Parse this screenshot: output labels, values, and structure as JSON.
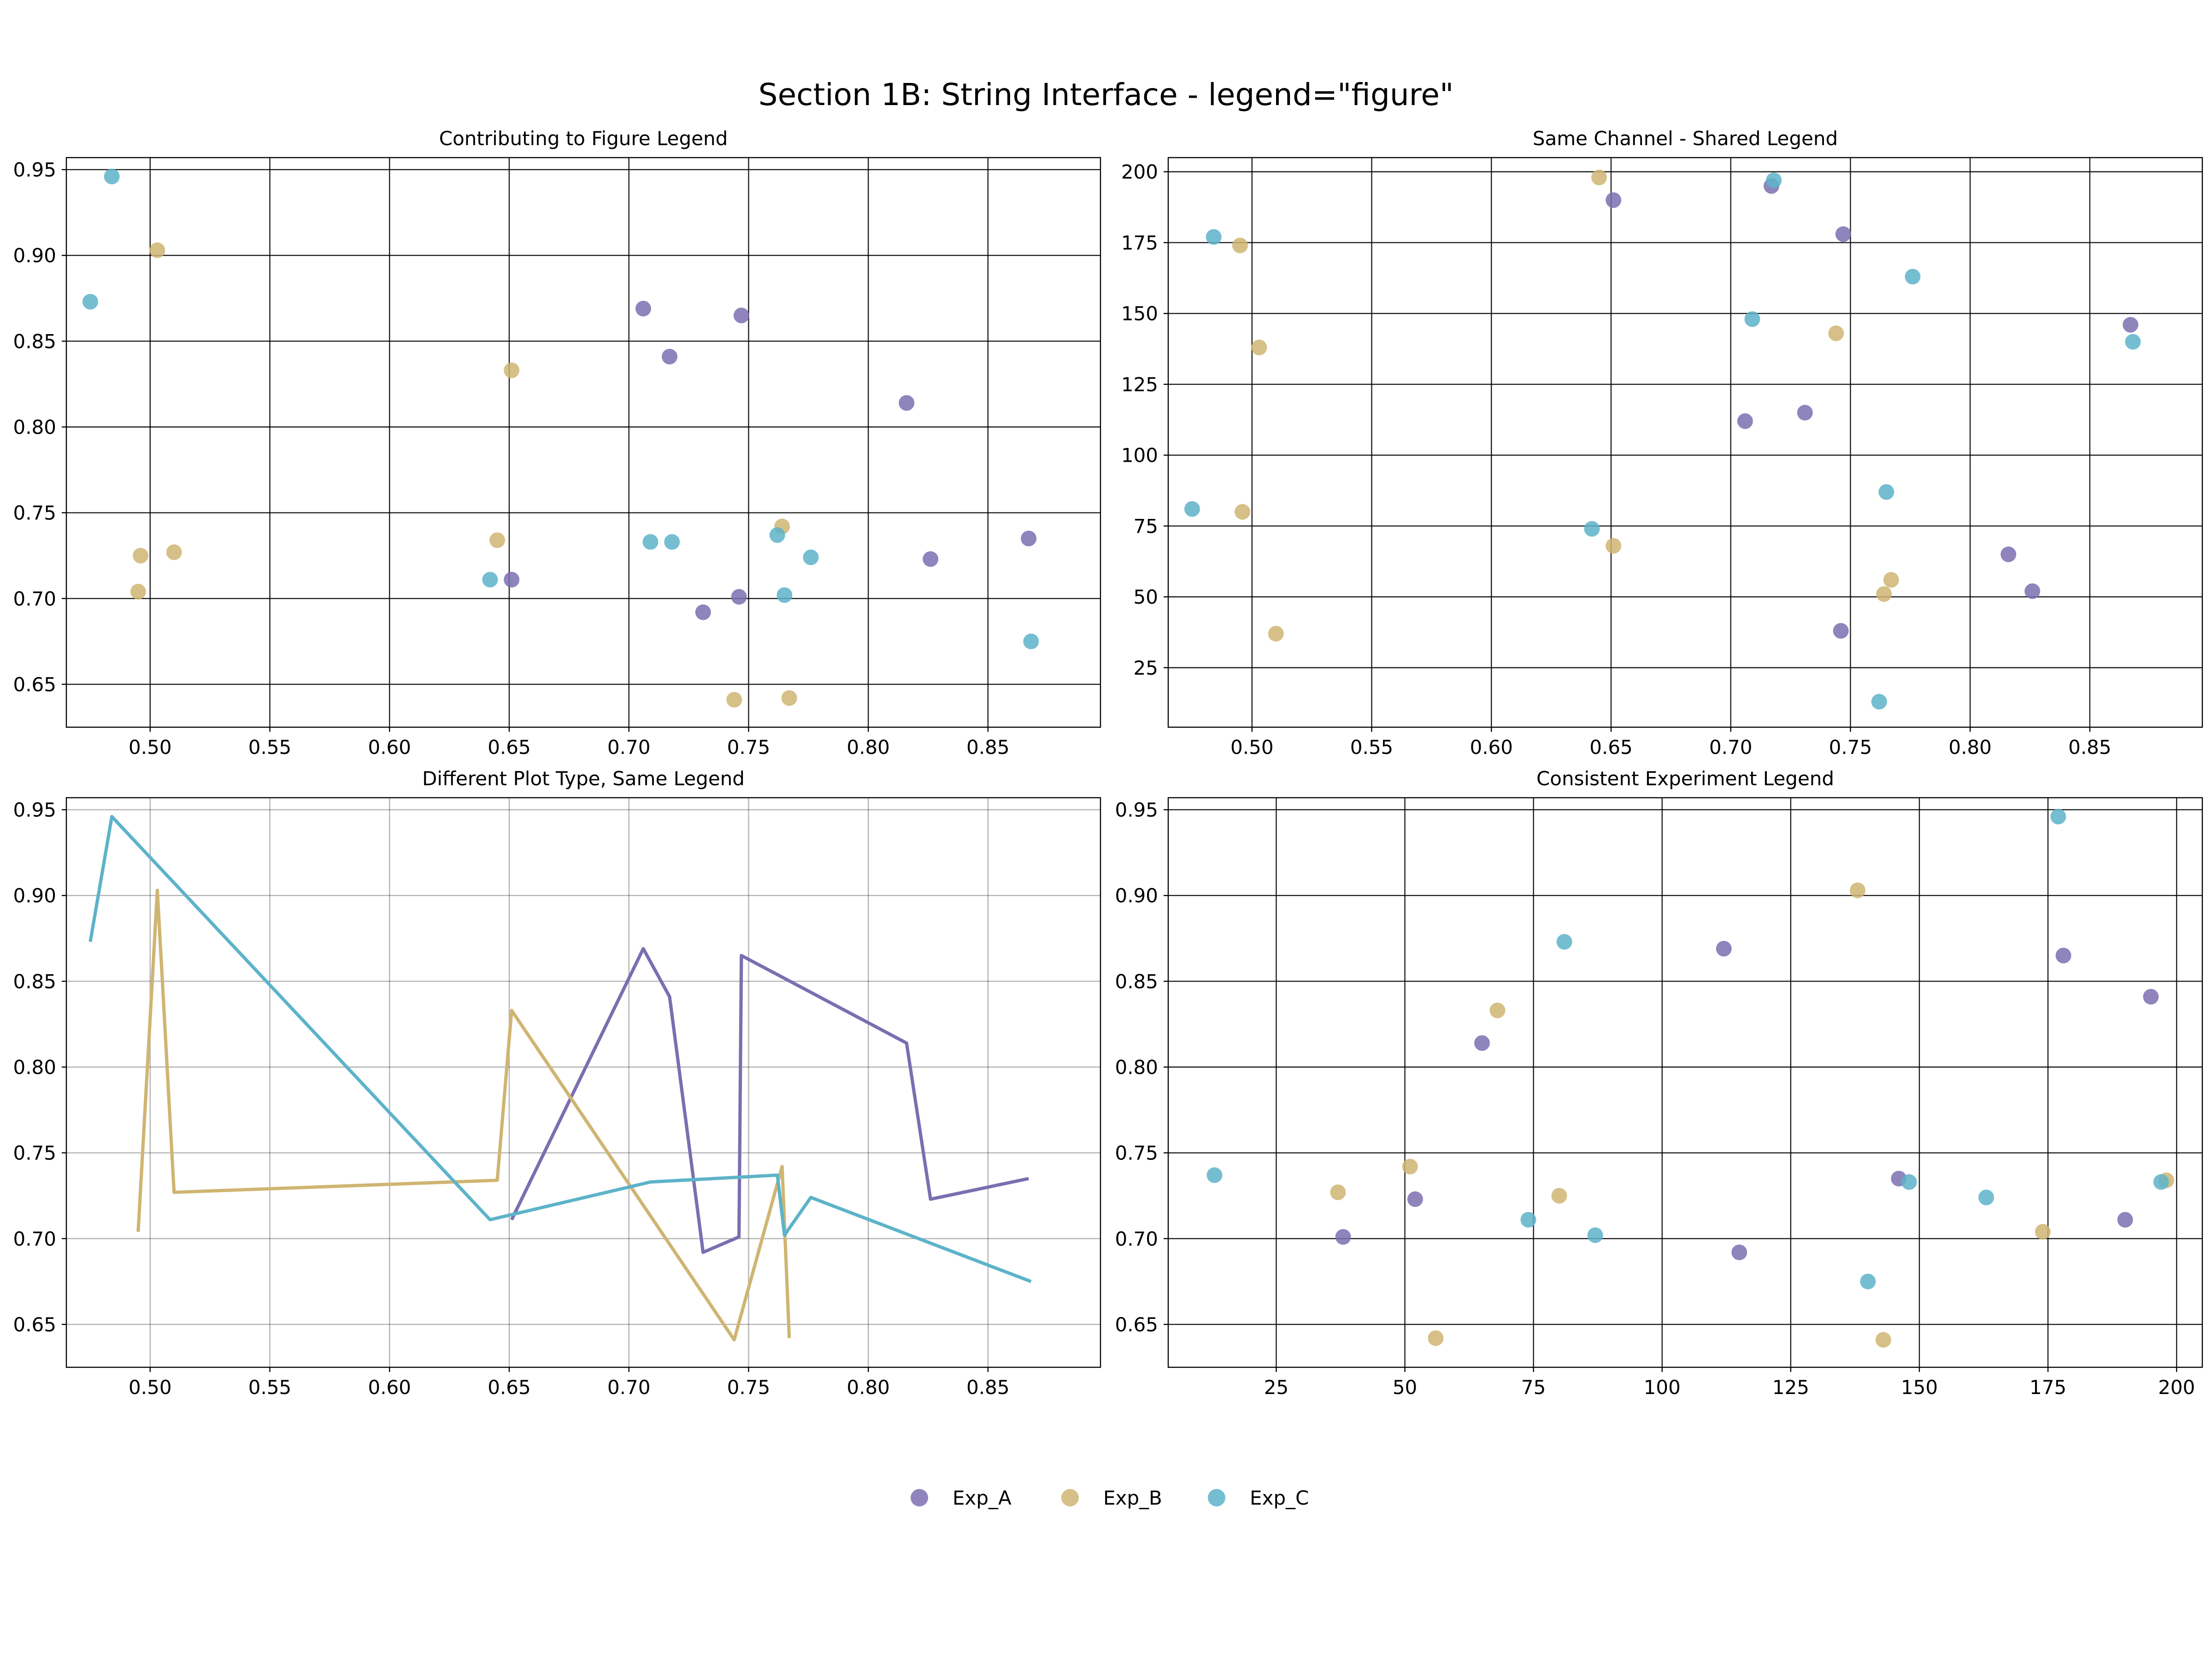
{
  "figure": {
    "suptitle": "Section 1B: String Interface - legend=\"figure\""
  },
  "colors": {
    "Exp_A": "#7b6eb0",
    "Exp_B": "#cfb572",
    "Exp_C": "#5db3c9"
  },
  "legend": {
    "placement": "bottom-center",
    "entries": [
      "Exp_A",
      "Exp_B",
      "Exp_C"
    ]
  },
  "chart_data": [
    {
      "type": "scatter",
      "title": "Contributing to Figure Legend",
      "xlabel": "",
      "ylabel": "",
      "xlim": [
        0.465,
        0.897
      ],
      "ylim": [
        0.625,
        0.957
      ],
      "xticks": [
        "0.50",
        "0.55",
        "0.60",
        "0.65",
        "0.70",
        "0.75",
        "0.80",
        "0.85"
      ],
      "yticks": [
        "0.65",
        "0.70",
        "0.75",
        "0.80",
        "0.85",
        "0.90",
        "0.95"
      ],
      "grid": true,
      "series": [
        {
          "name": "Exp_A",
          "points": [
            [
              0.651,
              0.711
            ],
            [
              0.706,
              0.869
            ],
            [
              0.717,
              0.841
            ],
            [
              0.731,
              0.692
            ],
            [
              0.746,
              0.701
            ],
            [
              0.747,
              0.865
            ],
            [
              0.816,
              0.814
            ],
            [
              0.826,
              0.723
            ],
            [
              0.867,
              0.735
            ]
          ]
        },
        {
          "name": "Exp_B",
          "points": [
            [
              0.495,
              0.704
            ],
            [
              0.496,
              0.725
            ],
            [
              0.503,
              0.903
            ],
            [
              0.51,
              0.727
            ],
            [
              0.645,
              0.734
            ],
            [
              0.651,
              0.833
            ],
            [
              0.744,
              0.641
            ],
            [
              0.764,
              0.742
            ],
            [
              0.767,
              0.642
            ]
          ]
        },
        {
          "name": "Exp_C",
          "points": [
            [
              0.475,
              0.873
            ],
            [
              0.484,
              0.946
            ],
            [
              0.642,
              0.711
            ],
            [
              0.709,
              0.733
            ],
            [
              0.718,
              0.733
            ],
            [
              0.762,
              0.737
            ],
            [
              0.765,
              0.702
            ],
            [
              0.776,
              0.724
            ],
            [
              0.868,
              0.675
            ]
          ]
        }
      ]
    },
    {
      "type": "scatter",
      "title": "Same Channel - Shared Legend",
      "xlabel": "",
      "ylabel": "",
      "xlim": [
        0.465,
        0.897
      ],
      "ylim": [
        4,
        205
      ],
      "xticks": [
        "0.50",
        "0.55",
        "0.60",
        "0.65",
        "0.70",
        "0.75",
        "0.80",
        "0.85"
      ],
      "yticks": [
        "25",
        "50",
        "75",
        "100",
        "125",
        "150",
        "175",
        "200"
      ],
      "grid": true,
      "series": [
        {
          "name": "Exp_A",
          "points": [
            [
              0.651,
              190
            ],
            [
              0.706,
              112
            ],
            [
              0.717,
              195
            ],
            [
              0.731,
              115
            ],
            [
              0.746,
              38
            ],
            [
              0.747,
              178
            ],
            [
              0.816,
              65
            ],
            [
              0.826,
              52
            ],
            [
              0.867,
              146
            ]
          ]
        },
        {
          "name": "Exp_B",
          "points": [
            [
              0.495,
              174
            ],
            [
              0.496,
              80
            ],
            [
              0.503,
              138
            ],
            [
              0.51,
              37
            ],
            [
              0.645,
              198
            ],
            [
              0.651,
              68
            ],
            [
              0.744,
              143
            ],
            [
              0.764,
              51
            ],
            [
              0.767,
              56
            ]
          ]
        },
        {
          "name": "Exp_C",
          "points": [
            [
              0.475,
              81
            ],
            [
              0.484,
              177
            ],
            [
              0.642,
              74
            ],
            [
              0.709,
              148
            ],
            [
              0.718,
              197
            ],
            [
              0.762,
              13
            ],
            [
              0.765,
              87
            ],
            [
              0.776,
              163
            ],
            [
              0.868,
              140
            ]
          ]
        }
      ]
    },
    {
      "type": "line",
      "title": "Different Plot Type, Same Legend",
      "xlabel": "",
      "ylabel": "",
      "xlim": [
        0.465,
        0.897
      ],
      "ylim": [
        0.625,
        0.957
      ],
      "xticks": [
        "0.50",
        "0.55",
        "0.60",
        "0.65",
        "0.70",
        "0.75",
        "0.80",
        "0.85"
      ],
      "yticks": [
        "0.65",
        "0.70",
        "0.75",
        "0.80",
        "0.85",
        "0.90",
        "0.95"
      ],
      "grid": true,
      "series": [
        {
          "name": "Exp_A",
          "points": [
            [
              0.651,
              0.711
            ],
            [
              0.706,
              0.869
            ],
            [
              0.717,
              0.841
            ],
            [
              0.731,
              0.692
            ],
            [
              0.746,
              0.701
            ],
            [
              0.747,
              0.865
            ],
            [
              0.816,
              0.814
            ],
            [
              0.826,
              0.723
            ],
            [
              0.867,
              0.735
            ]
          ]
        },
        {
          "name": "Exp_B",
          "points": [
            [
              0.495,
              0.704
            ],
            [
              0.503,
              0.903
            ],
            [
              0.51,
              0.727
            ],
            [
              0.645,
              0.734
            ],
            [
              0.651,
              0.833
            ],
            [
              0.744,
              0.641
            ],
            [
              0.764,
              0.742
            ],
            [
              0.767,
              0.642
            ]
          ]
        },
        {
          "name": "Exp_C",
          "points": [
            [
              0.475,
              0.873
            ],
            [
              0.484,
              0.946
            ],
            [
              0.642,
              0.711
            ],
            [
              0.709,
              0.733
            ],
            [
              0.762,
              0.737
            ],
            [
              0.765,
              0.702
            ],
            [
              0.776,
              0.724
            ],
            [
              0.868,
              0.675
            ]
          ]
        }
      ]
    },
    {
      "type": "scatter",
      "title": "Consistent Experiment Legend",
      "xlabel": "",
      "ylabel": "",
      "xlim": [
        4,
        205
      ],
      "ylim": [
        0.625,
        0.957
      ],
      "xticks": [
        "25",
        "50",
        "75",
        "100",
        "125",
        "150",
        "175",
        "200"
      ],
      "yticks": [
        "0.65",
        "0.70",
        "0.75",
        "0.80",
        "0.85",
        "0.90",
        "0.95"
      ],
      "grid": true,
      "series": [
        {
          "name": "Exp_A",
          "points": [
            [
              38,
              0.701
            ],
            [
              52,
              0.723
            ],
            [
              65,
              0.814
            ],
            [
              112,
              0.869
            ],
            [
              115,
              0.692
            ],
            [
              146,
              0.735
            ],
            [
              178,
              0.865
            ],
            [
              190,
              0.711
            ],
            [
              195,
              0.841
            ]
          ]
        },
        {
          "name": "Exp_B",
          "points": [
            [
              37,
              0.727
            ],
            [
              51,
              0.742
            ],
            [
              56,
              0.642
            ],
            [
              68,
              0.833
            ],
            [
              80,
              0.725
            ],
            [
              138,
              0.903
            ],
            [
              143,
              0.641
            ],
            [
              174,
              0.704
            ],
            [
              198,
              0.734
            ]
          ]
        },
        {
          "name": "Exp_C",
          "points": [
            [
              13,
              0.737
            ],
            [
              74,
              0.711
            ],
            [
              81,
              0.873
            ],
            [
              87,
              0.702
            ],
            [
              140,
              0.675
            ],
            [
              148,
              0.733
            ],
            [
              163,
              0.724
            ],
            [
              177,
              0.946
            ],
            [
              197,
              0.733
            ]
          ]
        }
      ]
    }
  ]
}
